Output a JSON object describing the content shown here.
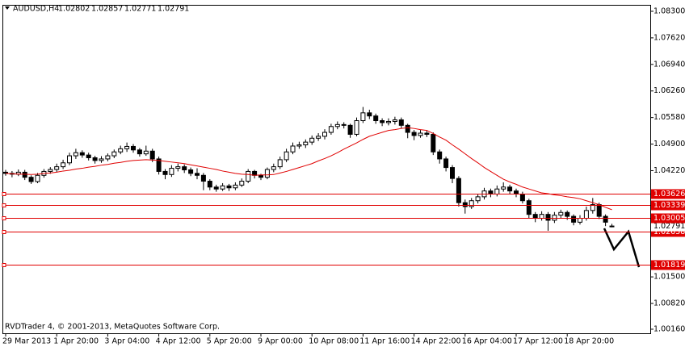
{
  "chart_data": {
    "type": "candlestick",
    "symbol": "AUDUSD,H4",
    "copyright": "RVDTrader 4, © 2001-2013, MetaQuotes Software Corp.",
    "categories": [
      "29 Mar 2013",
      null,
      null,
      null,
      null,
      null,
      null,
      null,
      "1 Apr 20:00",
      null,
      null,
      null,
      null,
      null,
      null,
      null,
      "3 Apr 04:00",
      null,
      null,
      null,
      null,
      null,
      null,
      null,
      "4 Apr 12:00",
      null,
      null,
      null,
      null,
      null,
      null,
      null,
      "5 Apr 20:00",
      null,
      null,
      null,
      null,
      null,
      null,
      null,
      "9 Apr 00:00",
      null,
      null,
      null,
      null,
      null,
      null,
      null,
      "10 Apr 08:00",
      null,
      null,
      null,
      null,
      null,
      null,
      null,
      "11 Apr 16:00",
      null,
      null,
      null,
      null,
      null,
      null,
      null,
      "14 Apr 22:00",
      null,
      null,
      null,
      null,
      null,
      null,
      null,
      "16 Apr 04:00",
      null,
      null,
      null,
      null,
      null,
      null,
      null,
      "17 Apr 12:00",
      null,
      null,
      null,
      null,
      null,
      null,
      null,
      "18 Apr 20:00",
      null,
      null,
      null,
      null,
      null,
      null,
      null
    ],
    "open": [
      1.0418,
      1.0415,
      1.0413,
      1.0418,
      1.0405,
      1.0394,
      1.041,
      1.042,
      1.0425,
      1.0432,
      1.0442,
      1.046,
      1.0468,
      1.0462,
      1.0455,
      1.0448,
      1.0452,
      1.046,
      1.047,
      1.0478,
      1.0484,
      1.0475,
      1.0465,
      1.0472,
      1.0452,
      1.042,
      1.0412,
      1.0428,
      1.0432,
      1.0424,
      1.0415,
      1.041,
      1.0395,
      1.038,
      1.0375,
      1.0383,
      1.0378,
      1.0385,
      1.0395,
      1.042,
      1.041,
      1.0405,
      1.0425,
      1.0432,
      1.045,
      1.047,
      1.0485,
      1.0488,
      1.0495,
      1.0505,
      1.051,
      1.052,
      1.0535,
      1.054,
      1.0538,
      1.0515,
      1.055,
      1.057,
      1.0562,
      1.055,
      1.0545,
      1.0548,
      1.0552,
      1.0538,
      1.052,
      1.0512,
      1.0518,
      1.0515,
      1.047,
      1.0452,
      1.043,
      1.0402,
      1.034,
      1.033,
      1.0345,
      1.0355,
      1.037,
      1.0362,
      1.0375,
      1.038,
      1.037,
      1.0362,
      1.0345,
      1.031,
      1.03,
      1.031,
      1.0295,
      1.0308,
      1.0315,
      1.0305,
      1.029,
      1.03,
      1.032,
      1.0335,
      1.0305,
      1.02802
    ],
    "high": [
      1.0424,
      1.0421,
      1.0425,
      1.0424,
      1.041,
      1.0416,
      1.0426,
      1.0431,
      1.044,
      1.045,
      1.0468,
      1.0478,
      1.0474,
      1.0468,
      1.046,
      1.0459,
      1.0466,
      1.0476,
      1.0486,
      1.0494,
      1.049,
      1.048,
      1.0486,
      1.0478,
      1.0458,
      1.0426,
      1.0436,
      1.044,
      1.0438,
      1.043,
      1.0428,
      1.0416,
      1.04,
      1.0386,
      1.039,
      1.0388,
      1.0392,
      1.0402,
      1.0426,
      1.0424,
      1.0414,
      1.043,
      1.044,
      1.0458,
      1.0478,
      1.0494,
      1.0496,
      1.0502,
      1.0512,
      1.0518,
      1.0528,
      1.0542,
      1.0548,
      1.0546,
      1.0542,
      1.0558,
      1.0585,
      1.0578,
      1.0568,
      1.0556,
      1.0556,
      1.056,
      1.0558,
      1.0542,
      1.0526,
      1.0526,
      1.0524,
      1.052,
      1.0476,
      1.0458,
      1.0436,
      1.0408,
      1.0348,
      1.0352,
      1.0362,
      1.0378,
      1.0376,
      1.0384,
      1.0392,
      1.0386,
      1.0376,
      1.0368,
      1.035,
      1.0316,
      1.0318,
      1.0316,
      1.0316,
      1.0322,
      1.032,
      1.031,
      1.0308,
      1.033,
      1.0352,
      1.034,
      1.031,
      1.02857
    ],
    "low": [
      1.0409,
      1.0405,
      1.0408,
      1.0398,
      1.0388,
      1.039,
      1.0404,
      1.0414,
      1.0418,
      1.0426,
      1.0436,
      1.0452,
      1.0455,
      1.0448,
      1.044,
      1.0442,
      1.0446,
      1.0454,
      1.0464,
      1.047,
      1.0468,
      1.0458,
      1.046,
      1.0444,
      1.0412,
      1.04,
      1.0406,
      1.042,
      1.0416,
      1.0408,
      1.04,
      1.0372,
      1.0372,
      1.0368,
      1.037,
      1.037,
      1.0372,
      1.038,
      1.039,
      1.0402,
      1.0398,
      1.04,
      1.0418,
      1.0426,
      1.0444,
      1.0464,
      1.0478,
      1.048,
      1.0488,
      1.0498,
      1.0502,
      1.0514,
      1.0528,
      1.053,
      1.0506,
      1.051,
      1.0544,
      1.0554,
      1.0542,
      1.0536,
      1.0538,
      1.054,
      1.053,
      1.0505,
      1.05,
      1.0506,
      1.0508,
      1.0462,
      1.044,
      1.042,
      1.039,
      1.033,
      1.0312,
      1.0324,
      1.0338,
      1.0348,
      1.0354,
      1.0356,
      1.0368,
      1.0362,
      1.0354,
      1.0338,
      1.03,
      1.029,
      1.0294,
      1.0268,
      1.0288,
      1.03,
      1.0296,
      1.0282,
      1.0284,
      1.0294,
      1.0312,
      1.0298,
      1.028,
      1.02771
    ],
    "close": [
      1.0415,
      1.0413,
      1.0418,
      1.0405,
      1.0394,
      1.041,
      1.042,
      1.0425,
      1.0432,
      1.0442,
      1.046,
      1.0468,
      1.0462,
      1.0455,
      1.0448,
      1.0452,
      1.046,
      1.047,
      1.0478,
      1.0484,
      1.0475,
      1.0465,
      1.0472,
      1.0452,
      1.042,
      1.0412,
      1.0428,
      1.0432,
      1.0424,
      1.0415,
      1.041,
      1.0395,
      1.038,
      1.0375,
      1.0383,
      1.0378,
      1.0385,
      1.0395,
      1.042,
      1.041,
      1.0405,
      1.0425,
      1.0432,
      1.045,
      1.047,
      1.0485,
      1.0488,
      1.0495,
      1.0505,
      1.051,
      1.052,
      1.0535,
      1.054,
      1.0538,
      1.0515,
      1.055,
      1.057,
      1.0562,
      1.055,
      1.0545,
      1.0548,
      1.0552,
      1.0538,
      1.052,
      1.0512,
      1.0518,
      1.0515,
      1.047,
      1.0452,
      1.043,
      1.0402,
      1.034,
      1.033,
      1.0345,
      1.0355,
      1.037,
      1.0362,
      1.0375,
      1.038,
      1.037,
      1.0362,
      1.0345,
      1.031,
      1.03,
      1.031,
      1.0295,
      1.0308,
      1.0315,
      1.0305,
      1.029,
      1.03,
      1.032,
      1.0335,
      1.0305,
      1.029,
      1.02791
    ],
    "ma": [
      1.0415,
      1.0414,
      1.0413,
      1.0413,
      1.0412,
      1.0413,
      1.0415,
      1.0416,
      1.0418,
      1.0421,
      1.0423,
      1.0426,
      1.0428,
      1.0431,
      1.0433,
      1.0436,
      1.0438,
      1.0441,
      1.0443,
      1.0446,
      1.0448,
      1.0449,
      1.045,
      1.0449,
      1.0448,
      1.0446,
      1.0444,
      1.0442,
      1.044,
      1.0437,
      1.0434,
      1.0431,
      1.0428,
      1.0425,
      1.0421,
      1.0418,
      1.0415,
      1.0413,
      1.0412,
      1.041,
      1.0411,
      1.0411,
      1.0412,
      1.0416,
      1.042,
      1.0425,
      1.043,
      1.0435,
      1.044,
      1.0447,
      1.0453,
      1.046,
      1.0468,
      1.0477,
      1.0485,
      1.0493,
      1.0502,
      1.051,
      1.0515,
      1.052,
      1.0525,
      1.0527,
      1.053,
      1.0532,
      1.053,
      1.0527,
      1.0525,
      1.0517,
      1.0508,
      1.05,
      1.0488,
      1.0477,
      1.0465,
      1.0453,
      1.0442,
      1.043,
      1.042,
      1.041,
      1.04,
      1.0393,
      1.0387,
      1.038,
      1.0375,
      1.037,
      1.0365,
      1.0363,
      1.036,
      1.0358,
      1.0355,
      1.0353,
      1.035,
      1.0345,
      1.034,
      1.0335,
      1.0328,
      1.0322
    ],
    "ma_color": "#e00000",
    "levels": [
      1.03626,
      1.03339,
      1.03005,
      1.02658,
      1.01819
    ],
    "level_color": "#e00000",
    "ylim": [
      1.00056,
      1.08465
    ],
    "yticks": [
      {
        "value": 1.083,
        "label": "1.08300"
      },
      {
        "value": 1.0762,
        "label": "1.07620"
      },
      {
        "value": 1.0694,
        "label": "1.06940"
      },
      {
        "value": 1.0626,
        "label": "1.06260"
      },
      {
        "value": 1.0558,
        "label": "1.05580"
      },
      {
        "value": 1.049,
        "label": "1.04900"
      },
      {
        "value": 1.0422,
        "label": "1.04220"
      },
      {
        "value": 1.015,
        "label": "1.01500"
      },
      {
        "value": 1.0082,
        "label": "1.00820"
      },
      {
        "value": 1.0016,
        "label": "1.00160"
      }
    ]
  }
}
